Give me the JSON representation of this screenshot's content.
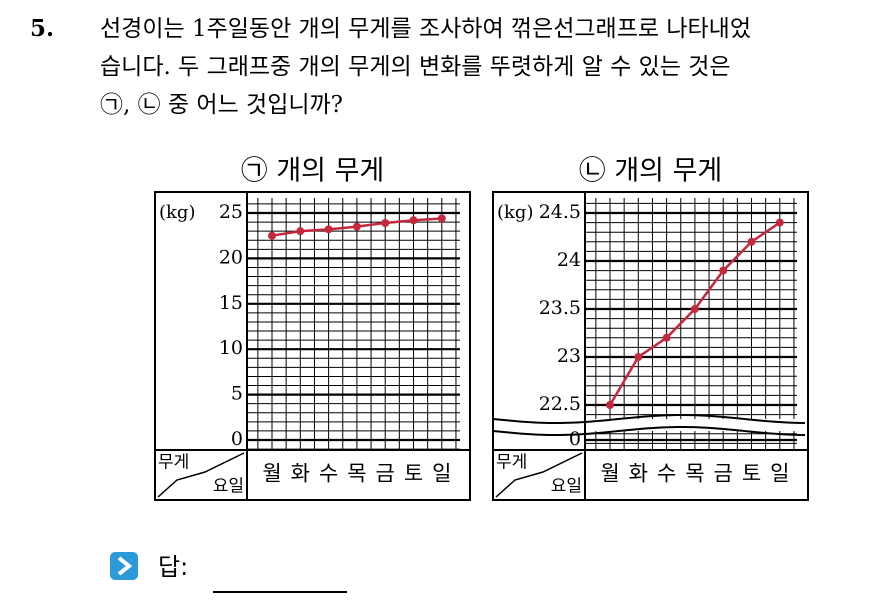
{
  "question": {
    "number": "5.",
    "lines": [
      "선경이는 1주일동안 개의 무게를 조사하여 꺾은선그래프로 나타내었",
      "습니다. 두 그래프중 개의 무게의 변화를 뚜렷하게 알 수 있는 것은",
      "㉠, ㉡ 중 어느 것입니까?"
    ],
    "answer_label": "답:"
  },
  "chart_data": [
    {
      "type": "line",
      "title": "㉠ 개의 무게",
      "y_label": "(kg)",
      "corner_top": "무게",
      "corner_bottom": "요일",
      "categories": [
        "월",
        "화",
        "수",
        "목",
        "금",
        "토",
        "일"
      ],
      "values": [
        22.5,
        23.0,
        23.2,
        23.5,
        23.9,
        24.2,
        24.4
      ],
      "color": "#c4283c",
      "ylim": [
        0,
        25
      ],
      "yticks": [
        0,
        5,
        10,
        15,
        20,
        25
      ],
      "grid": true
    },
    {
      "type": "line",
      "title": "㉡ 개의 무게",
      "y_label": "(kg)",
      "corner_top": "무게",
      "corner_bottom": "요일",
      "categories": [
        "월",
        "화",
        "수",
        "목",
        "금",
        "토",
        "일"
      ],
      "values": [
        22.5,
        23.0,
        23.2,
        23.5,
        23.9,
        24.2,
        24.4
      ],
      "color": "#c4283c",
      "ylim": [
        22.5,
        24.5
      ],
      "yticks": [
        0,
        22.5,
        23,
        23.5,
        24,
        24.5
      ],
      "grid": true,
      "axis_break": true
    }
  ]
}
